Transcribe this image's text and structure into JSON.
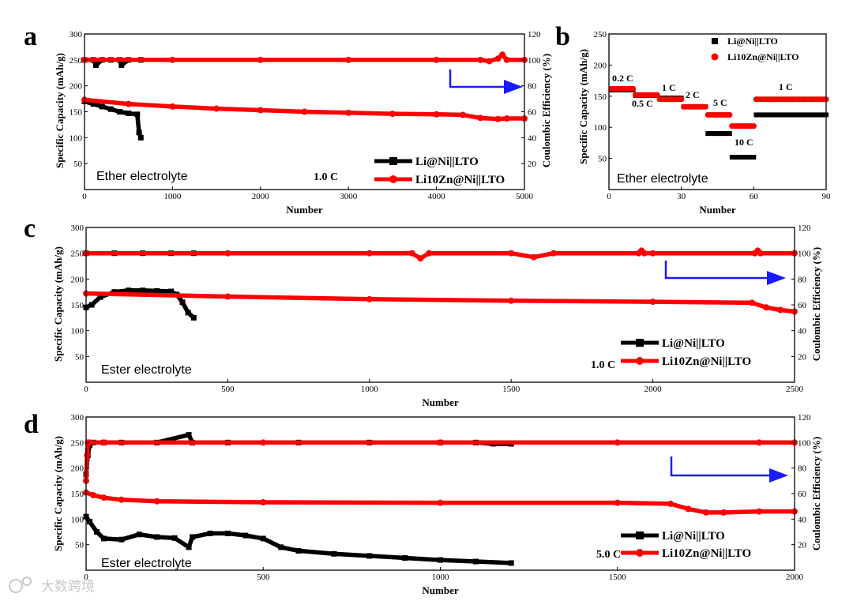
{
  "chart_data": [
    {
      "panel": "a",
      "type": "line",
      "annotation": "Ether electrolyte",
      "rate": "1.0 C",
      "xlabel": "Number",
      "ylabel": "Specific Capacity (mAh/g)",
      "y2label": "Coulombic Efficiency (%)",
      "xlim": [
        0,
        5000
      ],
      "ylim": [
        0,
        300
      ],
      "y2lim": [
        0,
        120
      ],
      "xticks": [
        0,
        1000,
        2000,
        3000,
        4000,
        5000
      ],
      "yticks": [
        50,
        100,
        150,
        200,
        250,
        300
      ],
      "y2ticks": [
        20,
        40,
        60,
        80,
        100,
        120
      ],
      "series": [
        {
          "name": "Li@Ni||LTO",
          "color": "#000000",
          "axis": "left",
          "x": [
            0,
            100,
            200,
            300,
            400,
            500,
            600,
            620,
            640
          ],
          "values": [
            170,
            165,
            160,
            155,
            150,
            147,
            145,
            110,
            100
          ]
        },
        {
          "name": "Li@Ni||LTO CE",
          "color": "#000000",
          "axis": "right",
          "x": [
            0,
            100,
            130,
            200,
            300,
            400,
            420,
            500,
            640
          ],
          "values": [
            100,
            100,
            96,
            100,
            100,
            100,
            96,
            100,
            100
          ]
        },
        {
          "name": "Li10Zn@Ni||LTO",
          "color": "#ff0000",
          "axis": "left",
          "x": [
            0,
            500,
            1000,
            1500,
            2000,
            2500,
            3000,
            3500,
            4000,
            4300,
            4500,
            4700,
            4800,
            5000
          ],
          "values": [
            173,
            165,
            160,
            156,
            153,
            150,
            148,
            146,
            145,
            144,
            138,
            136,
            137,
            137
          ]
        },
        {
          "name": "Li10Zn@Ni||LTO CE",
          "color": "#ff0000",
          "axis": "right",
          "x": [
            0,
            1000,
            2000,
            3000,
            4000,
            4500,
            4600,
            4700,
            4750,
            4800,
            5000
          ],
          "values": [
            100,
            100,
            100,
            100,
            100,
            100,
            99,
            101,
            104,
            100,
            100
          ]
        }
      ]
    },
    {
      "panel": "b",
      "type": "scatter",
      "annotation": "Ether electrolyte",
      "xlabel": "Number",
      "ylabel": "Specific Capacity (mAh/g)",
      "xlim": [
        0,
        90
      ],
      "ylim": [
        0,
        250
      ],
      "xticks": [
        0,
        30,
        60,
        90
      ],
      "yticks": [
        50,
        100,
        150,
        200,
        250
      ],
      "rate_labels": [
        "0.2 C",
        "0.5 C",
        "1 C",
        "2 C",
        "5 C",
        "10 C",
        "1 C"
      ],
      "series": [
        {
          "name": "Li@Ni||LTO",
          "color": "#000000",
          "segments": [
            [
              1,
              10,
              160
            ],
            [
              11,
              20,
              151
            ],
            [
              21,
              30,
              147
            ],
            [
              31,
              40,
              133
            ],
            [
              41,
              50,
              90
            ],
            [
              51,
              60,
              52
            ],
            [
              61,
              90,
              120
            ]
          ]
        },
        {
          "name": "Li10Zn@Ni||LTO",
          "color": "#ff0000",
          "segments": [
            [
              1,
              10,
              162
            ],
            [
              11,
              20,
              152
            ],
            [
              21,
              30,
              145
            ],
            [
              31,
              40,
              133
            ],
            [
              41,
              50,
              120
            ],
            [
              51,
              60,
              102
            ],
            [
              61,
              90,
              145
            ]
          ]
        }
      ]
    },
    {
      "panel": "c",
      "type": "line",
      "annotation": "Ester electrolyte",
      "rate": "1.0 C",
      "xlabel": "Number",
      "ylabel": "Specific Capacity (mAh/g)",
      "y2label": "Coulombic Efficiency (%)",
      "xlim": [
        0,
        2500
      ],
      "ylim": [
        0,
        300
      ],
      "y2lim": [
        0,
        120
      ],
      "xticks": [
        0,
        500,
        1000,
        1500,
        2000,
        2500
      ],
      "yticks": [
        50,
        100,
        150,
        200,
        250,
        300
      ],
      "y2ticks": [
        20,
        40,
        60,
        80,
        100,
        120
      ],
      "series": [
        {
          "name": "Li@Ni||LTO",
          "color": "#000000",
          "axis": "left",
          "x": [
            0,
            20,
            50,
            100,
            150,
            200,
            250,
            300,
            320,
            340,
            360,
            380
          ],
          "values": [
            145,
            150,
            165,
            175,
            178,
            178,
            177,
            176,
            170,
            155,
            135,
            125
          ]
        },
        {
          "name": "Li@Ni||LTO CE",
          "color": "#000000",
          "axis": "right",
          "x": [
            0,
            100,
            200,
            300,
            380
          ],
          "values": [
            100,
            100,
            100,
            100,
            100
          ]
        },
        {
          "name": "Li10Zn@Ni||LTO",
          "color": "#ff0000",
          "axis": "left",
          "x": [
            0,
            500,
            1000,
            1500,
            2000,
            2350,
            2400,
            2450,
            2500
          ],
          "values": [
            172,
            166,
            161,
            158,
            156,
            154,
            145,
            140,
            137
          ]
        },
        {
          "name": "Li10Zn@Ni||LTO CE",
          "color": "#ff0000",
          "axis": "right",
          "x": [
            0,
            500,
            1000,
            1150,
            1180,
            1210,
            1500,
            1580,
            1650,
            1950,
            1960,
            1970,
            2000,
            2360,
            2370,
            2380,
            2500
          ],
          "values": [
            100,
            100,
            100,
            100,
            96,
            100,
            100,
            97,
            100,
            100,
            102,
            100,
            100,
            100,
            102,
            100,
            100
          ]
        }
      ]
    },
    {
      "panel": "d",
      "type": "line",
      "annotation": "Ester electrolyte",
      "rate": "5.0 C",
      "xlabel": "Number",
      "ylabel": "Specific Capacity (mAh/g)",
      "y2label": "Coulombic Efficiency (%)",
      "xlim": [
        0,
        2000
      ],
      "ylim": [
        0,
        300
      ],
      "y2lim": [
        0,
        120
      ],
      "xticks": [
        0,
        500,
        1000,
        1500,
        2000
      ],
      "yticks": [
        50,
        100,
        150,
        200,
        250,
        300
      ],
      "y2ticks": [
        20,
        40,
        60,
        80,
        100,
        120
      ],
      "series": [
        {
          "name": "Li@Ni||LTO",
          "color": "#000000",
          "axis": "left",
          "x": [
            0,
            10,
            30,
            50,
            100,
            150,
            200,
            250,
            290,
            300,
            350,
            400,
            450,
            500,
            550,
            600,
            700,
            800,
            900,
            1000,
            1100,
            1200
          ],
          "values": [
            105,
            95,
            75,
            62,
            60,
            70,
            65,
            63,
            45,
            65,
            72,
            72,
            68,
            62,
            45,
            38,
            32,
            28,
            24,
            20,
            17,
            14
          ]
        },
        {
          "name": "Li@Ni||LTO CE",
          "color": "#000000",
          "axis": "right",
          "x": [
            0,
            5,
            10,
            20,
            50,
            100,
            200,
            290,
            300,
            400,
            600,
            800,
            1000,
            1100,
            1150,
            1200
          ],
          "values": [
            75,
            90,
            98,
            100,
            100,
            100,
            100,
            106,
            100,
            100,
            100,
            100,
            100,
            100,
            99,
            99
          ]
        },
        {
          "name": "Li10Zn@Ni||LTO",
          "color": "#ff0000",
          "axis": "left",
          "x": [
            0,
            20,
            50,
            100,
            200,
            500,
            1000,
            1500,
            1650,
            1700,
            1750,
            1800,
            1900,
            2000
          ],
          "values": [
            152,
            147,
            142,
            138,
            135,
            133,
            132,
            132,
            130,
            120,
            113,
            113,
            115,
            115
          ]
        },
        {
          "name": "Li10Zn@Ni||LTO CE",
          "color": "#ff0000",
          "axis": "right",
          "x": [
            0,
            3,
            5,
            10,
            50,
            500,
            1000,
            1500,
            1900,
            2000
          ],
          "values": [
            70,
            90,
            100,
            100,
            100,
            100,
            100,
            100,
            100,
            100
          ]
        }
      ]
    }
  ],
  "watermark": "大数跨境"
}
